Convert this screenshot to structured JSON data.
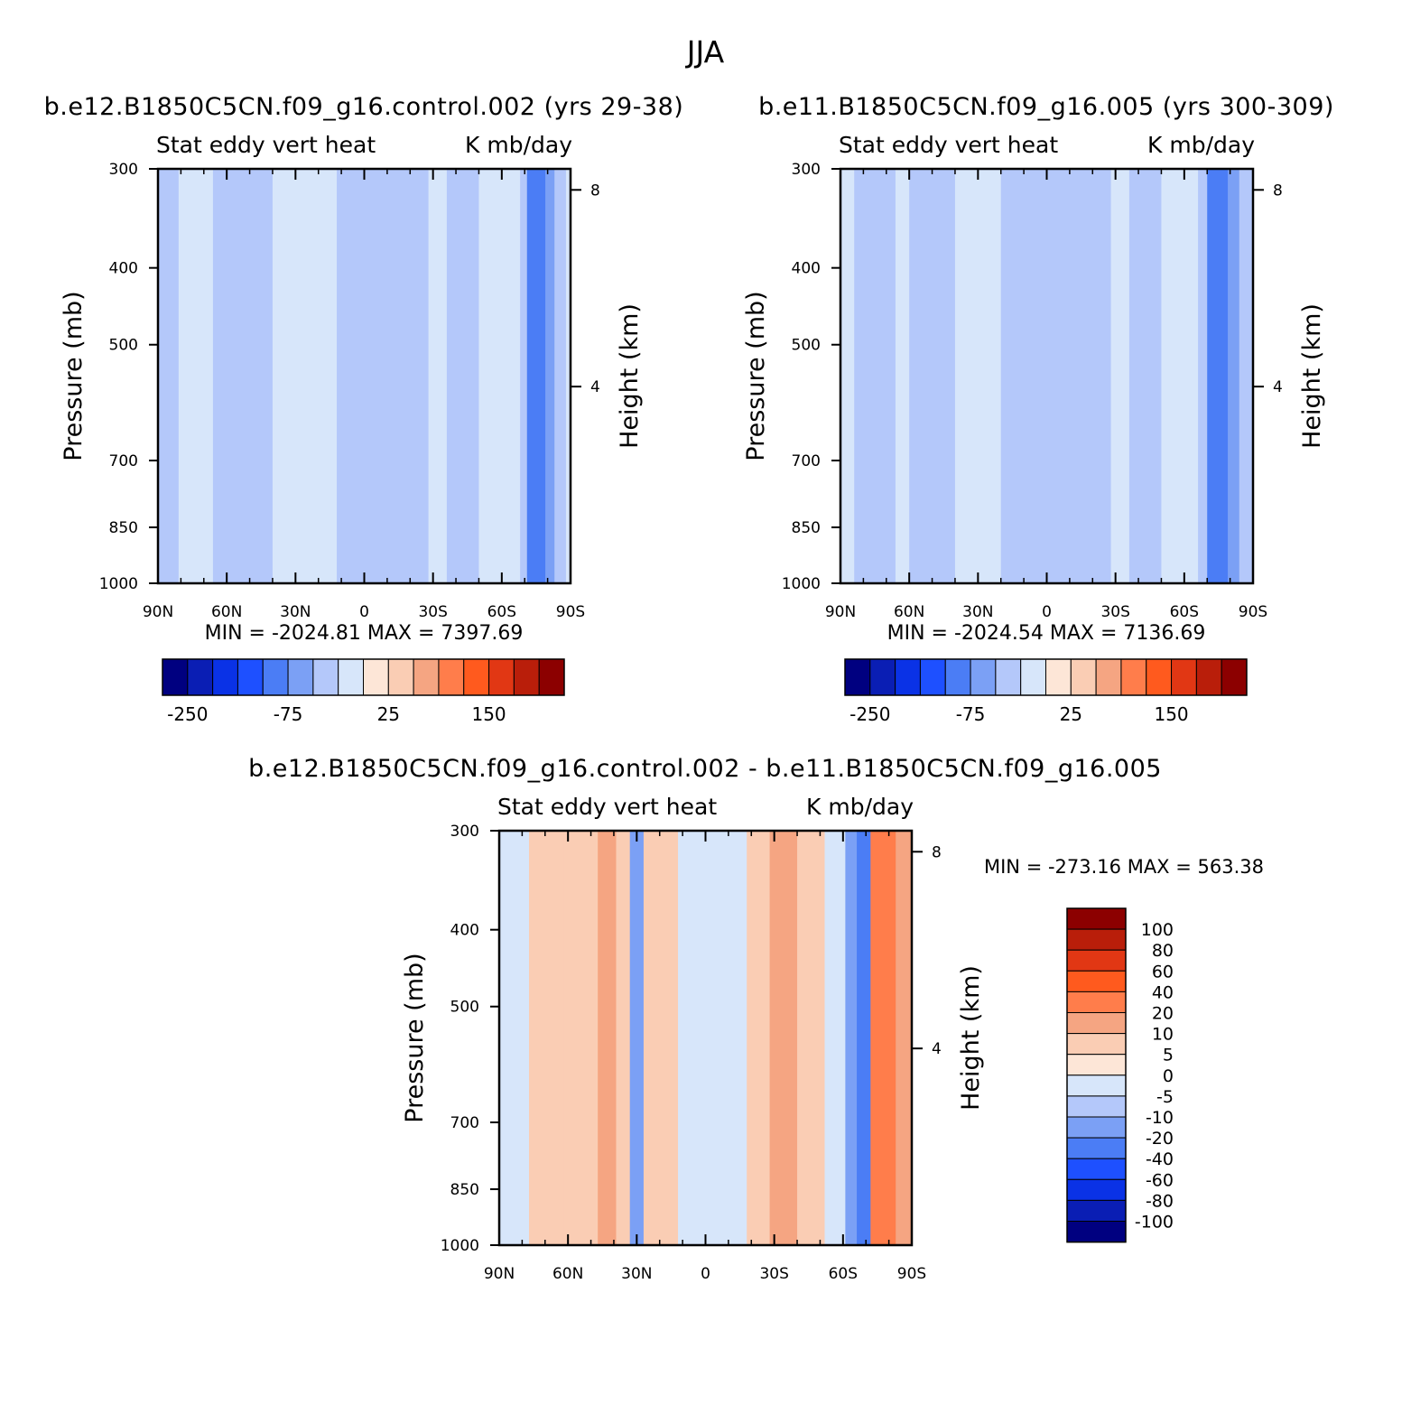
{
  "page": {
    "title": "JJA"
  },
  "panel_axis": {
    "y_label_left": "Pressure (mb)",
    "y_label_right": "Height (km)",
    "x_ticks": [
      "90N",
      "60N",
      "30N",
      "0",
      "30S",
      "60S",
      "90S"
    ],
    "x_lat": [
      90,
      60,
      30,
      0,
      -30,
      -60,
      -90
    ],
    "p_ticks": [
      300,
      400,
      500,
      700,
      850,
      1000
    ],
    "p_tick_labels": [
      "300",
      "400",
      "500",
      "700",
      "850",
      "1000"
    ],
    "z_ticks": [
      8,
      4
    ],
    "z_tick_labels": [
      "8",
      "4"
    ]
  },
  "chart_data": [
    {
      "type": "heatmap",
      "title": "b.e12.B1850C5CN.f09_g16.control.002 (yrs 29-38)",
      "subtitle_left": "Stat eddy vert heat",
      "subtitle_right": "K mb/day",
      "xlabel": "",
      "ylabel": "Pressure (mb)",
      "ylabel_right": "Height (km)",
      "x_range": [
        90,
        -90
      ],
      "ylim": [
        1000,
        300
      ],
      "y_scale": "log",
      "stats": "MIN = -2024.81   MAX = 7397.69",
      "min": -2024.81,
      "max": 7397.69,
      "colorbar": {
        "orientation": "horizontal",
        "labels": [
          "-250",
          "-75",
          "25",
          "150"
        ]
      },
      "lat_bands": [
        {
          "from": 90,
          "to": 81,
          "value": -5
        },
        {
          "from": 81,
          "to": 66,
          "value": 5
        },
        {
          "from": 66,
          "to": 40,
          "value": -5
        },
        {
          "from": 40,
          "to": 32,
          "value": 5
        },
        {
          "from": 32,
          "to": 27,
          "value": 20
        },
        {
          "from": 27,
          "to": 12,
          "value": 5
        },
        {
          "from": 12,
          "to": -28,
          "value": -5
        },
        {
          "from": -28,
          "to": -36,
          "value": 5
        },
        {
          "from": -36,
          "to": -50,
          "value": -5
        },
        {
          "from": -50,
          "to": -68,
          "value": 5
        },
        {
          "from": -68,
          "to": -71,
          "value": -20
        },
        {
          "from": -71,
          "to": -79,
          "value": -100
        },
        {
          "from": -79,
          "to": -83,
          "value": -40
        },
        {
          "from": -83,
          "to": -88,
          "value": -10
        },
        {
          "from": -88,
          "to": -90,
          "value": 5
        }
      ]
    },
    {
      "type": "heatmap",
      "title": "b.e11.B1850C5CN.f09_g16.005 (yrs 300-309)",
      "subtitle_left": "Stat eddy vert heat",
      "subtitle_right": "K mb/day",
      "xlabel": "",
      "ylabel": "Pressure (mb)",
      "ylabel_right": "Height (km)",
      "x_range": [
        90,
        -90
      ],
      "ylim": [
        1000,
        300
      ],
      "y_scale": "log",
      "stats": "MIN = -2024.54   MAX = 7136.69",
      "min": -2024.54,
      "max": 7136.69,
      "colorbar": {
        "orientation": "horizontal",
        "labels": [
          "-250",
          "-75",
          "25",
          "150"
        ]
      },
      "lat_bands": [
        {
          "from": 90,
          "to": 84,
          "value": 5
        },
        {
          "from": 84,
          "to": 66,
          "value": -5
        },
        {
          "from": 66,
          "to": 60,
          "value": 5
        },
        {
          "from": 60,
          "to": 40,
          "value": -5
        },
        {
          "from": 40,
          "to": 31,
          "value": 10
        },
        {
          "from": 31,
          "to": 27,
          "value": 20
        },
        {
          "from": 27,
          "to": 20,
          "value": 5
        },
        {
          "from": 20,
          "to": -28,
          "value": -5
        },
        {
          "from": -28,
          "to": -36,
          "value": 5
        },
        {
          "from": -36,
          "to": -50,
          "value": -5
        },
        {
          "from": -50,
          "to": -66,
          "value": 5
        },
        {
          "from": -66,
          "to": -70,
          "value": -20
        },
        {
          "from": -70,
          "to": -79,
          "value": -100
        },
        {
          "from": -79,
          "to": -84,
          "value": -40
        },
        {
          "from": -84,
          "to": -90,
          "value": -10
        }
      ]
    },
    {
      "type": "heatmap",
      "title": "b.e12.B1850C5CN.f09_g16.control.002 - b.e11.B1850C5CN.f09_g16.005",
      "subtitle_left": "Stat eddy vert heat",
      "subtitle_right": "K mb/day",
      "xlabel": "",
      "ylabel": "Pressure (mb)",
      "ylabel_right": "Height (km)",
      "x_range": [
        90,
        -90
      ],
      "ylim": [
        1000,
        300
      ],
      "y_scale": "log",
      "stats": "MIN = -273.16   MAX = 563.38",
      "min": -273.16,
      "max": 563.38,
      "colorbar": {
        "orientation": "vertical",
        "labels": [
          "100",
          "80",
          "60",
          "40",
          "20",
          "10",
          "5",
          "0",
          "-5",
          "-10",
          "-20",
          "-40",
          "-60",
          "-80",
          "-100"
        ]
      },
      "lat_bands": [
        {
          "from": 90,
          "to": 77,
          "value": -5
        },
        {
          "from": 77,
          "to": 62,
          "value": 5
        },
        {
          "from": 62,
          "to": 47,
          "value": 5
        },
        {
          "from": 47,
          "to": 39,
          "value": 10
        },
        {
          "from": 39,
          "to": 33,
          "value": 5
        },
        {
          "from": 33,
          "to": 27,
          "value": -20
        },
        {
          "from": 27,
          "to": 12,
          "value": 5
        },
        {
          "from": 12,
          "to": -18,
          "value": -5
        },
        {
          "from": -18,
          "to": -28,
          "value": 5
        },
        {
          "from": -28,
          "to": -40,
          "value": 10
        },
        {
          "from": -40,
          "to": -52,
          "value": 5
        },
        {
          "from": -52,
          "to": -61,
          "value": -5
        },
        {
          "from": -61,
          "to": -66,
          "value": -20
        },
        {
          "from": -66,
          "to": -72,
          "value": -40
        },
        {
          "from": -72,
          "to": -83,
          "value": 20
        },
        {
          "from": -83,
          "to": -90,
          "value": 10
        }
      ]
    }
  ],
  "colors": {
    "scale": [
      "#000080",
      "#0a1eb4",
      "#0a32e6",
      "#1e50ff",
      "#4b7df5",
      "#7ba0f5",
      "#b4c8fa",
      "#d7e6fa",
      "#fde6d7",
      "#facdb4",
      "#f5a582",
      "#ff7d4b",
      "#ff5a1e",
      "#e13714",
      "#b91e0a",
      "#8c0000"
    ],
    "scale_levels": [
      -1000000000.0,
      -300,
      -250,
      -200,
      -150,
      -75,
      -25,
      0,
      25,
      50,
      75,
      100,
      125,
      150,
      200,
      250
    ],
    "diff_levels": [
      -1000000000.0,
      -100,
      -80,
      -60,
      -40,
      -20,
      -10,
      -5,
      0,
      5,
      10,
      20,
      40,
      60,
      80,
      100
    ]
  }
}
